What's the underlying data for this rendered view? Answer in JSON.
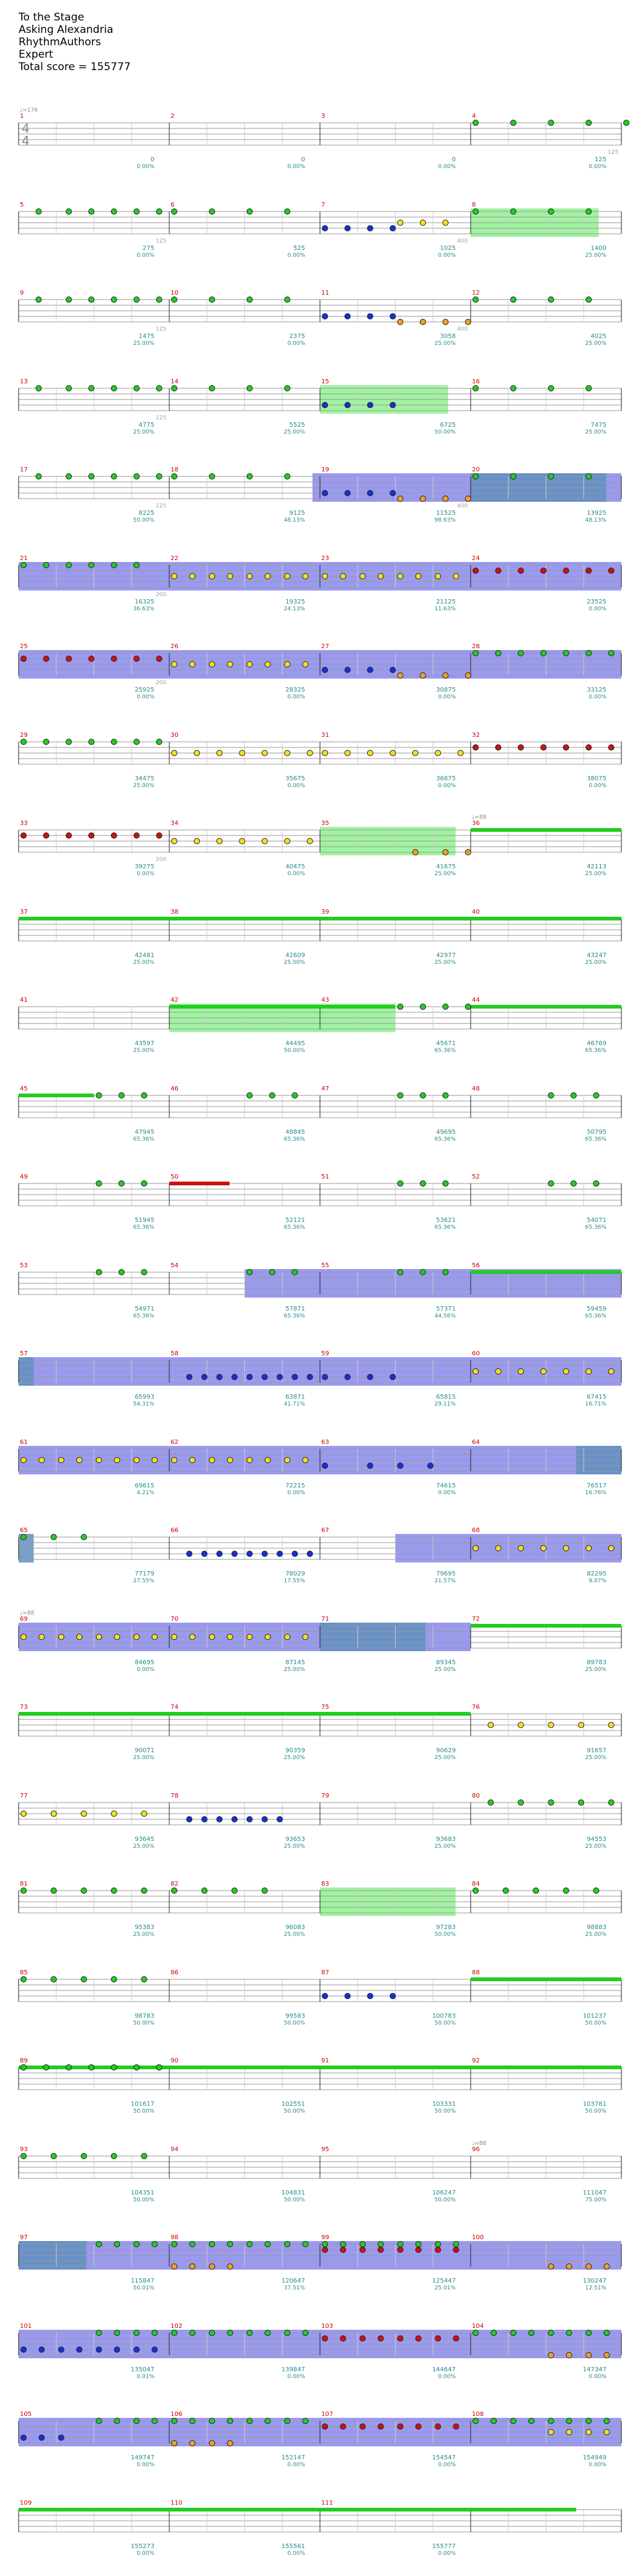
{
  "header": {
    "title": "To the Stage",
    "artist": "Asking Alexandria",
    "charter": "RhythmAuthors",
    "difficulty": "Expert",
    "total_score": "Total score = 155777"
  },
  "time_signature": {
    "top": "4",
    "bottom": "4"
  },
  "tempo_marks": [
    {
      "measure": 1,
      "text": "♩=176"
    },
    {
      "measure": 36,
      "text": "♩=88"
    },
    {
      "measure": 69,
      "text": "♩=88"
    },
    {
      "measure": 96,
      "text": "♩=88"
    }
  ],
  "colors": {
    "green": "#22cc22",
    "red": "#cc1111",
    "yellow": "#f2e020",
    "blue": "#1a2ed8",
    "orange": "#f0a020",
    "starpower": "#90f090",
    "solo": "#8888ee",
    "overlap": "#5f8fc0",
    "measure_number": "#cc0000",
    "score_text": "#2a8a8a",
    "count_text": "#a0a0a0"
  },
  "measures": [
    {
      "n": 1,
      "count": "",
      "score": "0",
      "pct": "0.00%"
    },
    {
      "n": 2,
      "count": "",
      "score": "0",
      "pct": "0.00%"
    },
    {
      "n": 3,
      "count": "",
      "score": "0",
      "pct": "0.00%"
    },
    {
      "n": 4,
      "count": "125",
      "score": "125",
      "pct": "0.00%"
    },
    {
      "n": 5,
      "count": "125",
      "score": "275",
      "pct": "0.00%"
    },
    {
      "n": 6,
      "count": "",
      "score": "525",
      "pct": "0.00%"
    },
    {
      "n": 7,
      "count": "400",
      "score": "1025",
      "pct": "0.00%"
    },
    {
      "n": 8,
      "count": "",
      "score": "1400",
      "pct": "25.00%"
    },
    {
      "n": 9,
      "count": "125",
      "score": "1475",
      "pct": "25.00%"
    },
    {
      "n": 10,
      "count": "",
      "score": "2375",
      "pct": "0.00%"
    },
    {
      "n": 11,
      "count": "400",
      "score": "3058",
      "pct": "25.00%"
    },
    {
      "n": 12,
      "count": "",
      "score": "4025",
      "pct": "25.00%"
    },
    {
      "n": 13,
      "count": "125",
      "score": "4775",
      "pct": "25.00%"
    },
    {
      "n": 14,
      "count": "",
      "score": "5525",
      "pct": "25.00%"
    },
    {
      "n": 15,
      "count": "",
      "score": "6725",
      "pct": "50.00%"
    },
    {
      "n": 16,
      "count": "",
      "score": "7475",
      "pct": "25.00%"
    },
    {
      "n": 17,
      "count": "125",
      "score": "8225",
      "pct": "50.00%"
    },
    {
      "n": 18,
      "count": "",
      "score": "9125",
      "pct": "48.13%"
    },
    {
      "n": 19,
      "count": "400",
      "score": "11525",
      "pct": "98.63%"
    },
    {
      "n": 20,
      "count": "",
      "score": "13925",
      "pct": "48.13%"
    },
    {
      "n": 21,
      "count": "200",
      "score": "16325",
      "pct": "36.63%"
    },
    {
      "n": 22,
      "count": "",
      "score": "19325",
      "pct": "24.13%"
    },
    {
      "n": 23,
      "count": "",
      "score": "21125",
      "pct": "11.63%"
    },
    {
      "n": 24,
      "count": "",
      "score": "23525",
      "pct": "0.00%"
    },
    {
      "n": 25,
      "count": "200",
      "score": "25925",
      "pct": "0.00%"
    },
    {
      "n": 26,
      "count": "",
      "score": "28325",
      "pct": "0.00%"
    },
    {
      "n": 27,
      "count": "",
      "score": "30875",
      "pct": "0.00%"
    },
    {
      "n": 28,
      "count": "",
      "score": "33125",
      "pct": "0.00%"
    },
    {
      "n": 29,
      "count": "",
      "score": "34475",
      "pct": "25.00%"
    },
    {
      "n": 30,
      "count": "",
      "score": "35675",
      "pct": "0.00%"
    },
    {
      "n": 31,
      "count": "",
      "score": "36875",
      "pct": "0.00%"
    },
    {
      "n": 32,
      "count": "",
      "score": "38075",
      "pct": "0.00%"
    },
    {
      "n": 33,
      "count": "200",
      "score": "39275",
      "pct": "0.00%"
    },
    {
      "n": 34,
      "count": "",
      "score": "40475",
      "pct": "0.00%"
    },
    {
      "n": 35,
      "count": "",
      "score": "41675",
      "pct": "25.00%"
    },
    {
      "n": 36,
      "count": "",
      "score": "42113",
      "pct": "25.00%"
    },
    {
      "n": 37,
      "count": "",
      "score": "42481",
      "pct": "25.00%"
    },
    {
      "n": 38,
      "count": "",
      "score": "42609",
      "pct": "25.00%"
    },
    {
      "n": 39,
      "count": "",
      "score": "42977",
      "pct": "25.00%"
    },
    {
      "n": 40,
      "count": "",
      "score": "43247",
      "pct": "25.00%"
    },
    {
      "n": 41,
      "count": "",
      "score": "43597",
      "pct": "25.00%"
    },
    {
      "n": 42,
      "count": "",
      "score": "44495",
      "pct": "50.00%"
    },
    {
      "n": 43,
      "count": "",
      "score": "45671",
      "pct": "65.36%"
    },
    {
      "n": 44,
      "count": "",
      "score": "46769",
      "pct": "65.36%"
    },
    {
      "n": 45,
      "count": "",
      "score": "47945",
      "pct": "65.36%"
    },
    {
      "n": 46,
      "count": "",
      "score": "48845",
      "pct": "65.36%"
    },
    {
      "n": 47,
      "count": "",
      "score": "49695",
      "pct": "65.36%"
    },
    {
      "n": 48,
      "count": "",
      "score": "50795",
      "pct": "65.36%"
    },
    {
      "n": 49,
      "count": "",
      "score": "51945",
      "pct": "65.36%"
    },
    {
      "n": 50,
      "count": "",
      "score": "52121",
      "pct": "65.36%"
    },
    {
      "n": 51,
      "count": "",
      "score": "53621",
      "pct": "65.36%"
    },
    {
      "n": 52,
      "count": "",
      "score": "54071",
      "pct": "65.36%"
    },
    {
      "n": 53,
      "count": "",
      "score": "54971",
      "pct": "65.36%"
    },
    {
      "n": 54,
      "count": "",
      "score": "57871",
      "pct": "65.36%"
    },
    {
      "n": 55,
      "count": "",
      "score": "57371",
      "pct": "44.56%"
    },
    {
      "n": 56,
      "count": "",
      "score": "59459",
      "pct": "65.36%"
    },
    {
      "n": 57,
      "count": "",
      "score": "65993",
      "pct": "54.31%"
    },
    {
      "n": 58,
      "count": "",
      "score": "63871",
      "pct": "41.71%"
    },
    {
      "n": 59,
      "count": "",
      "score": "65815",
      "pct": "29.11%"
    },
    {
      "n": 60,
      "count": "",
      "score": "67415",
      "pct": "16.71%"
    },
    {
      "n": 61,
      "count": "",
      "score": "69615",
      "pct": "4.21%"
    },
    {
      "n": 62,
      "count": "",
      "score": "72215",
      "pct": "0.00%"
    },
    {
      "n": 63,
      "count": "",
      "score": "74615",
      "pct": "0.00%"
    },
    {
      "n": 64,
      "count": "",
      "score": "76517",
      "pct": "16.76%"
    },
    {
      "n": 65,
      "count": "",
      "score": "77179",
      "pct": "27.55%"
    },
    {
      "n": 66,
      "count": "",
      "score": "78029",
      "pct": "17.55%"
    },
    {
      "n": 67,
      "count": "",
      "score": "79695",
      "pct": "21.57%"
    },
    {
      "n": 68,
      "count": "",
      "score": "82295",
      "pct": "9.07%"
    },
    {
      "n": 69,
      "count": "",
      "score": "84695",
      "pct": "0.00%"
    },
    {
      "n": 70,
      "count": "",
      "score": "87145",
      "pct": "25.00%"
    },
    {
      "n": 71,
      "count": "",
      "score": "89345",
      "pct": "25.00%"
    },
    {
      "n": 72,
      "count": "",
      "score": "89783",
      "pct": "25.00%"
    },
    {
      "n": 73,
      "count": "",
      "score": "90071",
      "pct": "25.00%"
    },
    {
      "n": 74,
      "count": "",
      "score": "90359",
      "pct": "25.00%"
    },
    {
      "n": 75,
      "count": "",
      "score": "90629",
      "pct": "25.00%"
    },
    {
      "n": 76,
      "count": "",
      "score": "91657",
      "pct": "25.00%"
    },
    {
      "n": 77,
      "count": "",
      "score": "93645",
      "pct": "25.00%"
    },
    {
      "n": 78,
      "count": "",
      "score": "93653",
      "pct": "25.00%"
    },
    {
      "n": 79,
      "count": "",
      "score": "93683",
      "pct": "25.00%"
    },
    {
      "n": 80,
      "count": "",
      "score": "94553",
      "pct": "25.00%"
    },
    {
      "n": 81,
      "count": "",
      "score": "95383",
      "pct": "25.00%"
    },
    {
      "n": 82,
      "count": "",
      "score": "96083",
      "pct": "25.00%"
    },
    {
      "n": 83,
      "count": "",
      "score": "97283",
      "pct": "50.00%"
    },
    {
      "n": 84,
      "count": "",
      "score": "98883",
      "pct": "25.00%"
    },
    {
      "n": 85,
      "count": "",
      "score": "98783",
      "pct": "50.00%"
    },
    {
      "n": 86,
      "count": "",
      "score": "99583",
      "pct": "50.00%"
    },
    {
      "n": 87,
      "count": "",
      "score": "100783",
      "pct": "50.00%"
    },
    {
      "n": 88,
      "count": "",
      "score": "101237",
      "pct": "50.00%"
    },
    {
      "n": 89,
      "count": "",
      "score": "101617",
      "pct": "50.00%"
    },
    {
      "n": 90,
      "count": "",
      "score": "102551",
      "pct": "50.00%"
    },
    {
      "n": 91,
      "count": "",
      "score": "103331",
      "pct": "50.00%"
    },
    {
      "n": 92,
      "count": "",
      "score": "103781",
      "pct": "50.00%"
    },
    {
      "n": 93,
      "count": "",
      "score": "104351",
      "pct": "50.00%"
    },
    {
      "n": 94,
      "count": "",
      "score": "104831",
      "pct": "50.00%"
    },
    {
      "n": 95,
      "count": "",
      "score": "106247",
      "pct": "50.00%"
    },
    {
      "n": 96,
      "count": "",
      "score": "111047",
      "pct": "75.00%"
    },
    {
      "n": 97,
      "count": "",
      "score": "115847",
      "pct": "50.01%"
    },
    {
      "n": 98,
      "count": "",
      "score": "120647",
      "pct": "37.51%"
    },
    {
      "n": 99,
      "count": "",
      "score": "125447",
      "pct": "25.01%"
    },
    {
      "n": 100,
      "count": "",
      "score": "130247",
      "pct": "12.51%"
    },
    {
      "n": 101,
      "count": "",
      "score": "135047",
      "pct": "0.01%"
    },
    {
      "n": 102,
      "count": "",
      "score": "139847",
      "pct": "0.00%"
    },
    {
      "n": 103,
      "count": "",
      "score": "144647",
      "pct": "0.00%"
    },
    {
      "n": 104,
      "count": "",
      "score": "147347",
      "pct": "0.00%"
    },
    {
      "n": 105,
      "count": "",
      "score": "149747",
      "pct": "0.00%"
    },
    {
      "n": 106,
      "count": "",
      "score": "152147",
      "pct": "0.00%"
    },
    {
      "n": 107,
      "count": "",
      "score": "154547",
      "pct": "0.00%"
    },
    {
      "n": 108,
      "count": "",
      "score": "154949",
      "pct": "0.00%"
    },
    {
      "n": 109,
      "count": "",
      "score": "155273",
      "pct": "0.00%"
    },
    {
      "n": 110,
      "count": "",
      "score": "155561",
      "pct": "0.00%"
    },
    {
      "n": 111,
      "count": "",
      "score": "155777",
      "pct": "0.00%"
    }
  ]
}
